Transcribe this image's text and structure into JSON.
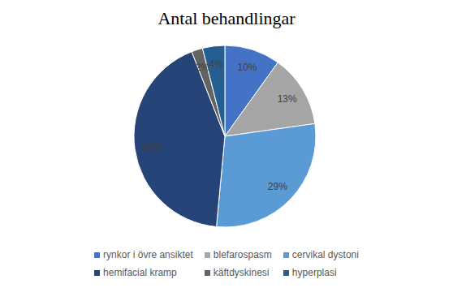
{
  "chart_data": {
    "type": "pie",
    "title": "Antal behandlingar",
    "categories": [
      "rynkor i övre ansiktet",
      "blefarospasm",
      "cervikal dystoni",
      "hemifacial kramp",
      "käftdyskinesi",
      "hyperplasi"
    ],
    "values": [
      10,
      13,
      29,
      43,
      2,
      4
    ],
    "value_labels": [
      "10%",
      "13%",
      "29%",
      "43%",
      "2%",
      "4%"
    ],
    "colors": [
      "#4472c4",
      "#a5a5a5",
      "#5b9bd5",
      "#264478",
      "#636363",
      "#255e91"
    ],
    "data_labels": true,
    "legend": "bottom"
  }
}
